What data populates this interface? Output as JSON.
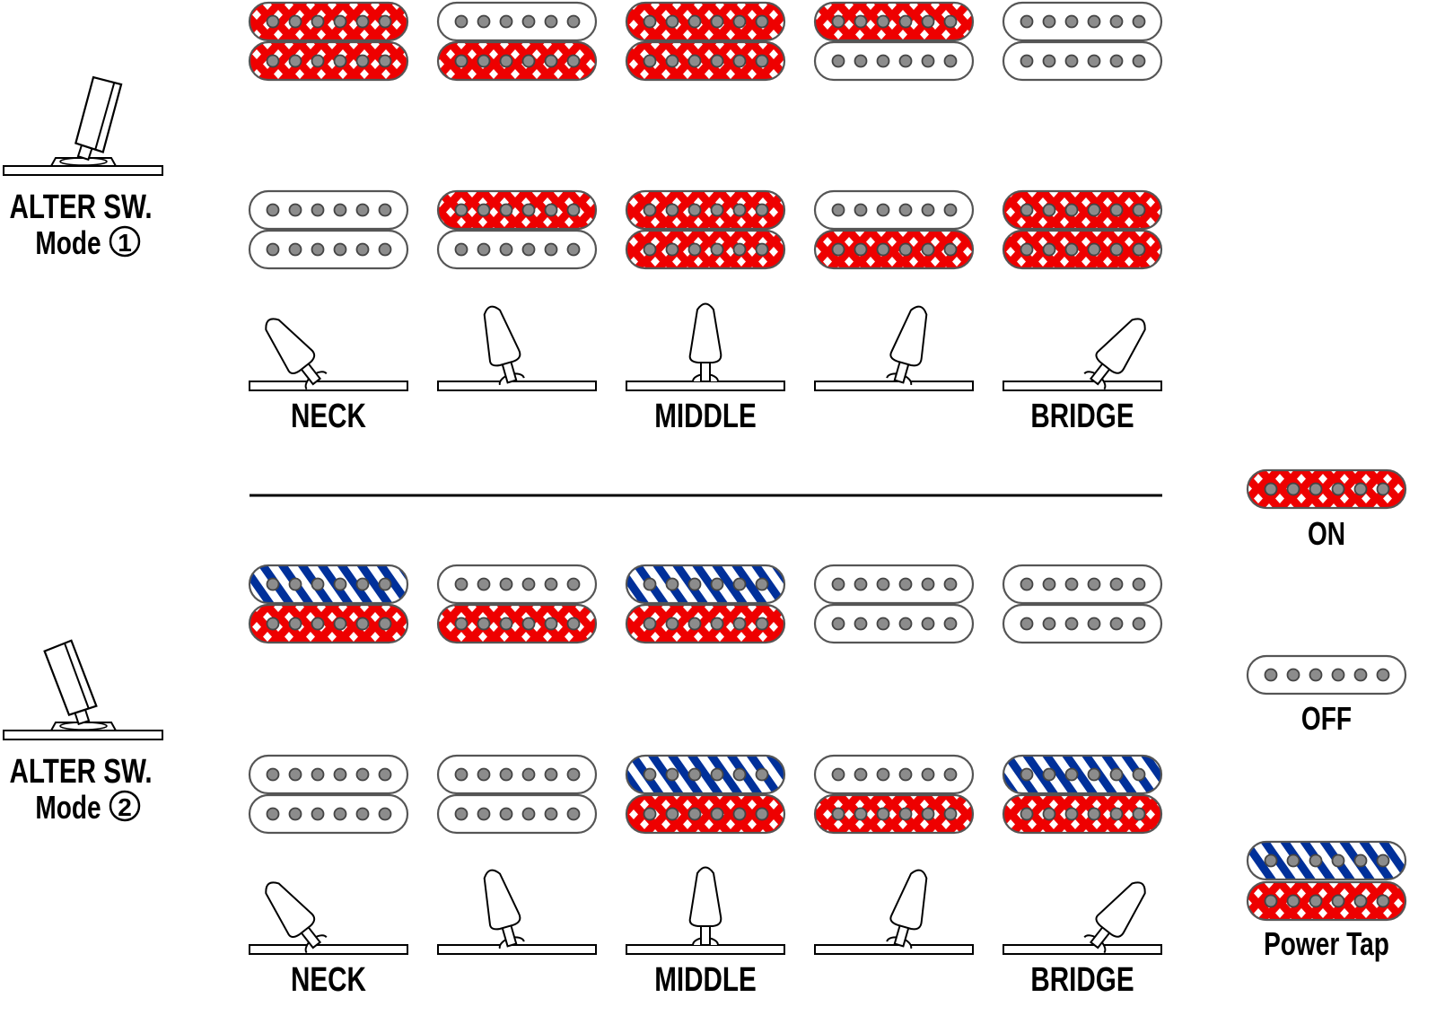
{
  "colors": {
    "on": "#ee0000",
    "tap": "#00309a",
    "off": "#ffffff",
    "pole": "#8c8c8c",
    "outline": "#555555"
  },
  "positions": [
    "neck",
    "neck-middle",
    "middle",
    "middle-bridge",
    "bridge"
  ],
  "lever_angles_deg": [
    -38,
    -16,
    0,
    16,
    38
  ],
  "position_labels": [
    "NECK",
    "",
    "MIDDLE",
    "",
    "BRIDGE"
  ],
  "modes": [
    {
      "switch_label": "ALTER SW.",
      "mode_label": "Mode",
      "mode_number": "1",
      "alter_lever": "right",
      "rows": [
        [
          [
            "on",
            "on"
          ],
          [
            "off",
            "on"
          ],
          [
            "on",
            "on"
          ],
          [
            "on",
            "off"
          ],
          [
            "off",
            "off"
          ]
        ],
        [
          [
            "off",
            "off"
          ],
          [
            "on",
            "off"
          ],
          [
            "on",
            "on"
          ],
          [
            "off",
            "on"
          ],
          [
            "on",
            "on"
          ]
        ]
      ]
    },
    {
      "switch_label": "ALTER SW.",
      "mode_label": "Mode",
      "mode_number": "2",
      "alter_lever": "left",
      "rows": [
        [
          [
            "tap",
            "on"
          ],
          [
            "off",
            "on"
          ],
          [
            "tap",
            "on"
          ],
          [
            "off",
            "off"
          ],
          [
            "off",
            "off"
          ]
        ],
        [
          [
            "off",
            "off"
          ],
          [
            "off",
            "off"
          ],
          [
            "tap",
            "on"
          ],
          [
            "off",
            "on"
          ],
          [
            "tap",
            "on"
          ]
        ]
      ]
    }
  ],
  "legend": [
    {
      "label": "ON",
      "coils": [
        "on"
      ]
    },
    {
      "label": "OFF",
      "coils": [
        "off"
      ]
    },
    {
      "label": "Power Tap",
      "coils": [
        "tap",
        "on"
      ]
    }
  ]
}
